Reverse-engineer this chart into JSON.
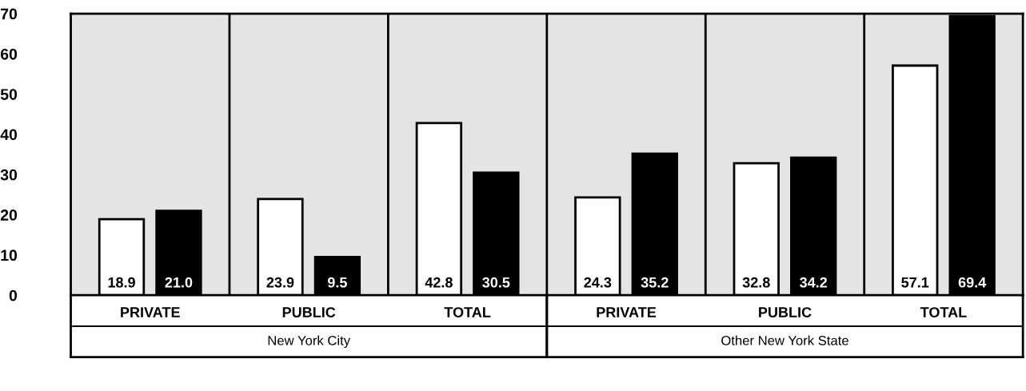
{
  "chart_data": {
    "type": "bar",
    "categories": [
      "PRIVATE",
      "PUBLIC",
      "TOTAL",
      "PRIVATE",
      "PUBLIC",
      "TOTAL"
    ],
    "series": [
      {
        "color": "#ffffff",
        "values": [
          18.9,
          23.9,
          42.8,
          24.3,
          32.8,
          57.1
        ],
        "value_labels": [
          "18.9",
          "23.9",
          "42.8",
          "24.3",
          "32.8",
          "57.1"
        ]
      },
      {
        "color": "#000000",
        "values": [
          21.0,
          9.5,
          30.5,
          35.2,
          34.2,
          69.4
        ],
        "value_labels": [
          "21.0",
          "9.5",
          "30.5",
          "35.2",
          "34.2",
          "69.4"
        ]
      }
    ],
    "annotations": [
      "New York City",
      "Other New York State"
    ],
    "ylim": [
      0,
      70
    ],
    "yticks": [
      0,
      10,
      20,
      30,
      40,
      50,
      60,
      70
    ],
    "grid": false,
    "legend": false
  }
}
